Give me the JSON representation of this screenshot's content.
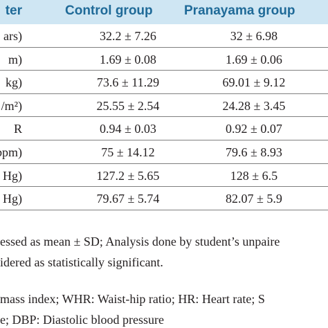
{
  "table": {
    "headers": [
      "ter",
      "Control group",
      "Pranayama group"
    ],
    "rows": [
      [
        "ars)",
        "32.2 ± 7.26",
        "32 ± 6.98"
      ],
      [
        "m)",
        "1.69 ± 0.08",
        "1.69 ± 0.06"
      ],
      [
        "kg)",
        "73.6 ± 11.29",
        "69.01 ± 9.12"
      ],
      [
        "/m²)",
        "25.55 ± 2.54",
        "24.28 ± 3.45"
      ],
      [
        "R",
        "0.94 ± 0.03",
        "0.92 ± 0.07"
      ],
      [
        "bpm)",
        "75 ± 14.12",
        "79.6 ± 8.93"
      ],
      [
        "Hg)",
        "127.2 ± 5.65",
        "128 ± 6.5"
      ],
      [
        "n Hg)",
        "79.67 ± 5.74",
        "82.07 ± 5.9"
      ]
    ]
  },
  "footnotes": [
    "essed as mean ± SD; Analysis done by student’s unpaire",
    "idered as statistically significant.",
    "mass index; WHR: Waist-hip ratio; HR: Heart rate; S",
    "e; DBP: Diastolic blood pressure"
  ],
  "colors": {
    "header_band": "#cfe6f3",
    "header_text": "#1f6a98",
    "body_text": "#231f20"
  }
}
